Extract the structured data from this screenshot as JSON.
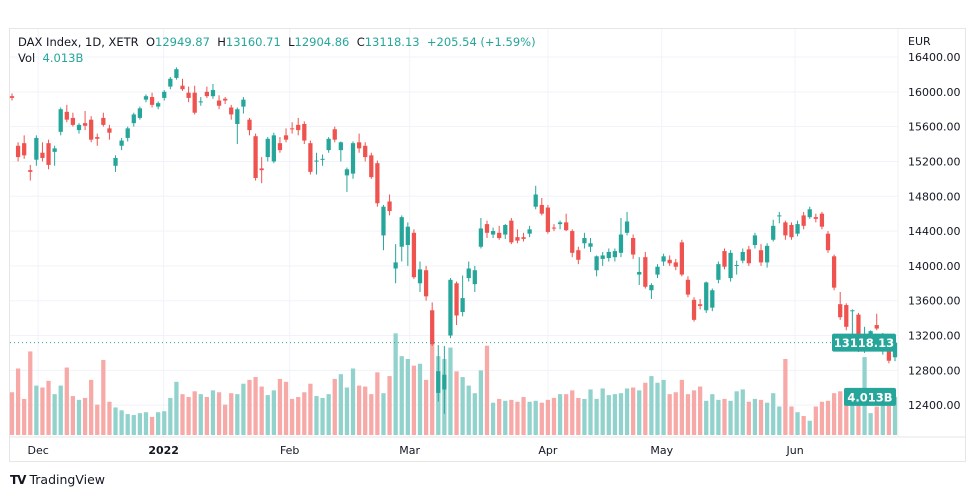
{
  "header": {
    "symbol": "DAX Index, 1D, XETR",
    "open_label": "O",
    "open": "12949.87",
    "high_label": "H",
    "high": "13160.71",
    "low_label": "L",
    "low": "12904.86",
    "close_label": "C",
    "close": "13118.13",
    "change": "+205.54 (+1.59%)",
    "vol_label": "Vol",
    "vol": "4.013B"
  },
  "brand": {
    "logo": "TV",
    "name": "TradingView"
  },
  "colors": {
    "up": "#26a69a",
    "down": "#ef5350",
    "up_vol": "#92d2cc",
    "down_vol": "#f7a9a7",
    "grid": "#f0f3fa",
    "text": "#131722"
  },
  "chart_data": {
    "type": "candlestick",
    "currency": "EUR",
    "ylim": [
      12000,
      16500
    ],
    "price_ticks": [
      "16400.00",
      "16000.00",
      "15600.00",
      "15200.00",
      "14800.00",
      "14400.00",
      "14000.00",
      "13600.00",
      "13200.00",
      "12800.00",
      "12400.00"
    ],
    "x_labels": [
      {
        "label": "Dec",
        "index": 4.3
      },
      {
        "label": "2022",
        "index": 24.9
      },
      {
        "label": "Feb",
        "index": 45.6
      },
      {
        "label": "Mar",
        "index": 65.3
      },
      {
        "label": "Apr",
        "index": 88
      },
      {
        "label": "May",
        "index": 106.7
      },
      {
        "label": "Jun",
        "index": 128.6
      }
    ],
    "last_price_tag": "13118.13",
    "last_price": 13118.13,
    "last_volume_tag": "4.013B",
    "volume_unit": "B",
    "candles_ohlc": [
      [
        15950,
        15980,
        15900,
        15930
      ],
      [
        15380,
        15420,
        15200,
        15250
      ],
      [
        15410,
        15500,
        15230,
        15270
      ],
      [
        15100,
        15160,
        14980,
        15080
      ],
      [
        15220,
        15500,
        15150,
        15470
      ],
      [
        15300,
        15420,
        15200,
        15240
      ],
      [
        15410,
        15450,
        15110,
        15160
      ],
      [
        15310,
        15380,
        15150,
        15350
      ],
      [
        15540,
        15820,
        15500,
        15800
      ],
      [
        15770,
        15850,
        15650,
        15680
      ],
      [
        15700,
        15760,
        15600,
        15620
      ],
      [
        15560,
        15640,
        15520,
        15620
      ],
      [
        15640,
        15780,
        15560,
        15610
      ],
      [
        15680,
        15720,
        15420,
        15450
      ],
      [
        15480,
        15520,
        15380,
        15460
      ],
      [
        15700,
        15760,
        15600,
        15620
      ],
      [
        15580,
        15620,
        15450,
        15530
      ],
      [
        15150,
        15270,
        15080,
        15240
      ],
      [
        15380,
        15470,
        15330,
        15440
      ],
      [
        15470,
        15600,
        15430,
        15580
      ],
      [
        15640,
        15760,
        15600,
        15740
      ],
      [
        15700,
        15830,
        15680,
        15810
      ],
      [
        15910,
        15970,
        15880,
        15950
      ],
      [
        15940,
        15990,
        15820,
        15850
      ],
      [
        15830,
        15890,
        15800,
        15870
      ],
      [
        15930,
        16020,
        15900,
        16000
      ],
      [
        16060,
        16170,
        16030,
        16150
      ],
      [
        16160,
        16280,
        16140,
        16260
      ],
      [
        16070,
        16150,
        16010,
        16030
      ],
      [
        15990,
        16060,
        15880,
        15930
      ],
      [
        15990,
        16070,
        15740,
        15760
      ],
      [
        15880,
        15940,
        15840,
        15890
      ],
      [
        16000,
        16060,
        15930,
        15950
      ],
      [
        15950,
        16090,
        15920,
        16020
      ],
      [
        15900,
        15960,
        15800,
        15840
      ],
      [
        15920,
        15940,
        15860,
        15900
      ],
      [
        15820,
        15850,
        15680,
        15740
      ],
      [
        15630,
        15820,
        15400,
        15800
      ],
      [
        15830,
        15940,
        15750,
        15910
      ],
      [
        15680,
        15700,
        15500,
        15560
      ],
      [
        15490,
        15520,
        14980,
        15010
      ],
      [
        15120,
        15250,
        14950,
        15100
      ],
      [
        15250,
        15480,
        15200,
        15460
      ],
      [
        15200,
        15530,
        15180,
        15500
      ],
      [
        15410,
        15480,
        15300,
        15330
      ],
      [
        15500,
        15580,
        15420,
        15450
      ],
      [
        15580,
        15650,
        15520,
        15570
      ],
      [
        15620,
        15700,
        15500,
        15560
      ],
      [
        15630,
        15660,
        15400,
        15440
      ],
      [
        15410,
        15440,
        15050,
        15080
      ],
      [
        15200,
        15300,
        15050,
        15210
      ],
      [
        15220,
        15280,
        15150,
        15230
      ],
      [
        15330,
        15480,
        15300,
        15460
      ],
      [
        15570,
        15600,
        15420,
        15450
      ],
      [
        15330,
        15430,
        15200,
        15420
      ],
      [
        15040,
        15130,
        14850,
        15110
      ],
      [
        15060,
        15430,
        15000,
        15410
      ],
      [
        15420,
        15520,
        15300,
        15350
      ],
      [
        15380,
        15420,
        15200,
        15250
      ],
      [
        15270,
        15300,
        15000,
        15020
      ],
      [
        15180,
        15210,
        14680,
        14720
      ],
      [
        14350,
        14700,
        14180,
        14680
      ],
      [
        14740,
        14820,
        14580,
        14630
      ],
      [
        13970,
        14250,
        13800,
        14040
      ],
      [
        14220,
        14580,
        14050,
        14560
      ],
      [
        14240,
        14500,
        14000,
        14450
      ],
      [
        14380,
        14420,
        13850,
        13870
      ],
      [
        13800,
        14050,
        13700,
        13960
      ],
      [
        13950,
        14000,
        13600,
        13650
      ],
      [
        13490,
        13580,
        13080,
        13100
      ],
      [
        12540,
        13090,
        12440,
        12790
      ],
      [
        12580,
        13080,
        12300,
        12750
      ],
      [
        13200,
        13860,
        13170,
        13840
      ],
      [
        13800,
        13820,
        13320,
        13430
      ],
      [
        13470,
        13890,
        13420,
        13630
      ],
      [
        13860,
        14050,
        13820,
        13970
      ],
      [
        13790,
        14000,
        13700,
        13950
      ],
      [
        14220,
        14550,
        14200,
        14430
      ],
      [
        14480,
        14520,
        14320,
        14380
      ],
      [
        14360,
        14440,
        14320,
        14400
      ],
      [
        14380,
        14460,
        14300,
        14320
      ],
      [
        14360,
        14480,
        14310,
        14470
      ],
      [
        14520,
        14550,
        14250,
        14270
      ],
      [
        14330,
        14420,
        14260,
        14290
      ],
      [
        14330,
        14380,
        14280,
        14310
      ],
      [
        14370,
        14460,
        14330,
        14420
      ],
      [
        14680,
        14920,
        14650,
        14820
      ],
      [
        14700,
        14780,
        14580,
        14600
      ],
      [
        14670,
        14700,
        14370,
        14390
      ],
      [
        14440,
        14480,
        14400,
        14430
      ],
      [
        14480,
        14520,
        14420,
        14500
      ],
      [
        14500,
        14600,
        14400,
        14410
      ],
      [
        14400,
        14420,
        14100,
        14150
      ],
      [
        14180,
        14220,
        14020,
        14070
      ],
      [
        14260,
        14380,
        14200,
        14320
      ],
      [
        14220,
        14320,
        14160,
        14260
      ],
      [
        13950,
        14120,
        13880,
        14110
      ],
      [
        14080,
        14160,
        14000,
        14120
      ],
      [
        14090,
        14200,
        14050,
        14160
      ],
      [
        14100,
        14200,
        14050,
        14170
      ],
      [
        14150,
        14550,
        14100,
        14360
      ],
      [
        14380,
        14620,
        14350,
        14510
      ],
      [
        14320,
        14360,
        14080,
        14130
      ],
      [
        13900,
        14100,
        13780,
        13930
      ],
      [
        14100,
        14160,
        13740,
        13760
      ],
      [
        13720,
        13800,
        13620,
        13780
      ],
      [
        13900,
        14020,
        13860,
        13990
      ],
      [
        14050,
        14140,
        14000,
        14110
      ],
      [
        14070,
        14120,
        14000,
        14030
      ],
      [
        14040,
        14080,
        13950,
        13990
      ],
      [
        14270,
        14300,
        13880,
        13900
      ],
      [
        13840,
        13880,
        13640,
        13670
      ],
      [
        13610,
        13640,
        13360,
        13380
      ],
      [
        13560,
        13620,
        13500,
        13540
      ],
      [
        13490,
        13820,
        13460,
        13810
      ],
      [
        13520,
        13740,
        13480,
        13720
      ],
      [
        13840,
        14050,
        13800,
        14020
      ],
      [
        14170,
        14200,
        13960,
        13990
      ],
      [
        13860,
        14180,
        13820,
        14150
      ],
      [
        14000,
        14060,
        13900,
        14010
      ],
      [
        14060,
        14200,
        14030,
        14160
      ],
      [
        14190,
        14230,
        14000,
        14030
      ],
      [
        14240,
        14380,
        14200,
        14350
      ],
      [
        14180,
        14250,
        14000,
        14040
      ],
      [
        14040,
        14260,
        13980,
        14230
      ],
      [
        14300,
        14530,
        14280,
        14460
      ],
      [
        14570,
        14620,
        14490,
        14580
      ],
      [
        14500,
        14520,
        14300,
        14350
      ],
      [
        14470,
        14500,
        14300,
        14330
      ],
      [
        14370,
        14520,
        14340,
        14480
      ],
      [
        14580,
        14620,
        14420,
        14460
      ],
      [
        14560,
        14680,
        14540,
        14650
      ],
      [
        14560,
        14600,
        14500,
        14540
      ],
      [
        14600,
        14620,
        14420,
        14450
      ],
      [
        14370,
        14400,
        14150,
        14180
      ],
      [
        14110,
        14130,
        13720,
        13750
      ],
      [
        13560,
        13700,
        13380,
        13410
      ],
      [
        13550,
        13570,
        13260,
        13300
      ],
      [
        13480,
        13500,
        13200,
        13490
      ],
      [
        13440,
        13460,
        13010,
        13040
      ],
      [
        13080,
        13300,
        13000,
        13120
      ],
      [
        13180,
        13260,
        13050,
        13250
      ],
      [
        13320,
        13450,
        13260,
        13280
      ],
      [
        13070,
        13230,
        12980,
        13170
      ],
      [
        13080,
        13120,
        12880,
        12910
      ],
      [
        12949.87,
        13160.71,
        12904.86,
        13118.13
      ]
    ],
    "volumes": [
      4.5,
      7.0,
      3.8,
      8.8,
      5.2,
      5.0,
      5.7,
      4.3,
      5.2,
      7.1,
      4.1,
      3.7,
      3.9,
      5.8,
      3.2,
      7.9,
      3.5,
      2.9,
      2.6,
      2.2,
      2.1,
      2.3,
      2.4,
      1.9,
      2.4,
      2.5,
      3.9,
      5.6,
      4.3,
      4.0,
      4.6,
      4.3,
      4.0,
      4.7,
      4.5,
      3.2,
      4.4,
      4.3,
      5.4,
      5.8,
      6.1,
      5.1,
      4.2,
      4.7,
      5.9,
      5.6,
      3.8,
      4.0,
      4.5,
      5.4,
      4.1,
      3.9,
      4.3,
      5.9,
      6.4,
      5.0,
      7.0,
      5.2,
      5.1,
      4.3,
      6.6,
      4.4,
      6.2,
      10.7,
      8.3,
      8.0,
      7.3,
      7.5,
      5.8,
      10.2,
      8.3,
      8.0,
      9.2,
      6.7,
      6.1,
      5.2,
      4.4,
      6.8,
      9.4,
      3.4,
      3.8,
      3.6,
      3.7,
      3.5,
      4.0,
      3.5,
      3.6,
      3.4,
      3.7,
      3.9,
      4.3,
      4.3,
      4.7,
      3.9,
      3.8,
      4.8,
      3.8,
      4.9,
      4.2,
      4.3,
      4.4,
      4.9,
      5.0,
      4.7,
      5.5,
      6.2,
      5.5,
      5.8,
      4.3,
      4.5,
      5.8,
      4.3,
      4.7,
      5.1,
      3.6,
      4.3,
      3.7,
      3.8,
      3.6,
      4.6,
      4.8,
      3.5,
      3.8,
      3.7,
      3.4,
      4.4,
      3.0,
      8.0,
      3.0,
      2.4,
      2.0,
      1.5,
      3.0,
      3.5,
      3.6,
      4.4,
      4.6,
      4.4,
      3.9,
      4.1,
      8.2,
      2.3,
      3.0,
      3.8,
      4.5,
      4.013
    ]
  }
}
